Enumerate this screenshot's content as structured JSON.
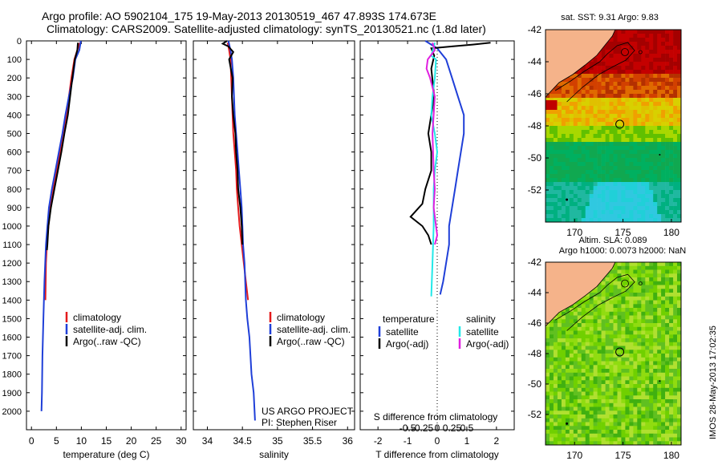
{
  "header": {
    "title_line1": "Argo profile: AO 5902104_175 19-May-2013 20130519_467 47.893S 174.673E",
    "title_line2": "Climatology: CARS2009. Satellite-adjusted climatology: synTS_20130521.nc (1.8d later)"
  },
  "map_top": {
    "title": "sat. SST: 9.31 Argo: 9.83"
  },
  "map_bottom": {
    "title_line1": "Altim. SLA: 0.089",
    "title_line2": "Argo h1000: 0.0073 h2000: NaN"
  },
  "credit": {
    "project": "US ARGO PROJECT",
    "pi": "PI: Stephen Riser"
  },
  "footer_stamp": "IMOS 28-May-2013 17:02:35",
  "colors": {
    "climatology": "#e41a1c",
    "satellite": "#1f3fd8",
    "argo": "#000000",
    "sal_satellite": "#22e8e8",
    "sal_argo": "#e020e0",
    "land": "#f5b38a"
  },
  "chart_data": [
    {
      "type": "line",
      "id": "temperature",
      "xlabel": "temperature (deg C)",
      "ylabel": "",
      "xlim": [
        -1,
        31
      ],
      "ylim": [
        2100,
        0
      ],
      "xticks": [
        0,
        5,
        10,
        15,
        20,
        25,
        30
      ],
      "yticks": [
        0,
        100,
        200,
        300,
        400,
        500,
        600,
        700,
        800,
        900,
        1000,
        1100,
        1200,
        1300,
        1400,
        1500,
        1600,
        1700,
        1800,
        1900,
        2000
      ],
      "legend": [
        "climatology",
        "satellite-adj. clim.",
        "Argo(..raw -QC)"
      ],
      "legend_position": "lower-center",
      "series": [
        {
          "name": "climatology",
          "color": "#e41a1c",
          "x": [
            9.7,
            9.2,
            8.6,
            8.0,
            7.0,
            6.3,
            5.7,
            5.1,
            4.4,
            3.8,
            3.4,
            3.1,
            2.9,
            2.8
          ],
          "y": [
            10,
            50,
            100,
            200,
            400,
            500,
            600,
            700,
            800,
            900,
            1000,
            1100,
            1200,
            1400
          ]
        },
        {
          "name": "satellite-adj. clim.",
          "color": "#1f3fd8",
          "x": [
            9.9,
            9.6,
            8.8,
            8.3,
            7.5,
            6.8,
            6.2,
            5.5,
            4.8,
            4.1,
            3.5,
            3.2,
            2.9,
            2.6,
            2.4,
            2.3,
            2.2,
            2.1,
            2.0
          ],
          "y": [
            0,
            50,
            100,
            200,
            300,
            400,
            500,
            600,
            700,
            800,
            900,
            1000,
            1100,
            1300,
            1500,
            1600,
            1700,
            1900,
            2000
          ]
        },
        {
          "name": "Argo(..raw -QC)",
          "color": "#000000",
          "x": [
            9.3,
            9.2,
            8.7,
            8.2,
            7.3,
            6.6,
            6.0,
            5.3,
            4.6,
            3.9,
            3.4,
            3.2,
            3.1
          ],
          "y": [
            10,
            50,
            100,
            200,
            400,
            500,
            600,
            700,
            800,
            900,
            1000,
            1100,
            1130
          ]
        }
      ]
    },
    {
      "type": "line",
      "id": "salinity",
      "xlabel": "salinity",
      "xlim": [
        33.8,
        36.1
      ],
      "ylim": [
        2100,
        0
      ],
      "xticks": [
        34,
        34.5,
        35,
        35.5,
        36
      ],
      "legend": [
        "climatology",
        "satellite-adj. clim.",
        "Argo(..raw -QC)"
      ],
      "legend_position": "center-right",
      "series": [
        {
          "name": "climatology",
          "color": "#e41a1c",
          "x": [
            34.29,
            34.31,
            34.33,
            34.34,
            34.36,
            34.37,
            34.39,
            34.41,
            34.42,
            34.44,
            34.46,
            34.49,
            34.52,
            34.55,
            34.58
          ],
          "y": [
            10,
            50,
            100,
            200,
            400,
            500,
            600,
            700,
            800,
            900,
            1000,
            1100,
            1200,
            1300,
            1400
          ]
        },
        {
          "name": "satellite-adj. clim.",
          "color": "#1f3fd8",
          "x": [
            34.3,
            34.33,
            34.35,
            34.37,
            34.38,
            34.39,
            34.41,
            34.43,
            34.45,
            34.47,
            34.49,
            34.5,
            34.51,
            34.53,
            34.55,
            34.57,
            34.6,
            34.63,
            34.66,
            34.68
          ],
          "y": [
            0,
            50,
            100,
            200,
            300,
            400,
            500,
            600,
            700,
            800,
            900,
            1000,
            1100,
            1200,
            1400,
            1500,
            1600,
            1800,
            1900,
            2050
          ]
        },
        {
          "name": "Argo(..raw -QC)",
          "color": "#000000",
          "x": [
            34.28,
            34.22,
            34.3,
            34.37,
            34.31,
            34.36,
            34.35,
            34.37,
            34.4,
            34.41,
            34.43,
            34.44,
            34.47,
            34.49,
            34.5
          ],
          "y": [
            0,
            15,
            30,
            60,
            100,
            200,
            300,
            400,
            500,
            600,
            700,
            800,
            900,
            1000,
            1100
          ]
        }
      ]
    },
    {
      "type": "line",
      "id": "difference",
      "xlabel": "T difference from climatology",
      "xlabel_top": "S difference from climatology",
      "xlim": [
        -2.6,
        2.6
      ],
      "ylim": [
        2100,
        0
      ],
      "xticks": [
        -2,
        -1,
        0,
        1,
        2
      ],
      "xticks_top": [
        "-0.5",
        "-0.25",
        "0",
        "0.25",
        "0.5"
      ],
      "legend_temperature": {
        "title": "temperature",
        "items": [
          "satellite",
          "Argo(-adj)"
        ]
      },
      "legend_salinity": {
        "title": "salinity",
        "items": [
          "satellite",
          "Argo(-adj)"
        ]
      },
      "series": [
        {
          "name": "temperature satellite",
          "color": "#1f3fd8",
          "x": [
            -0.4,
            -0.2,
            0.0,
            0.1,
            0.3,
            0.5,
            0.7,
            0.9,
            0.9,
            0.8,
            0.7,
            0.6,
            0.5,
            0.4,
            0.4,
            0.3,
            0.2,
            0.1
          ],
          "y": [
            0,
            20,
            40,
            60,
            100,
            200,
            300,
            400,
            500,
            600,
            700,
            800,
            900,
            1000,
            1100,
            1200,
            1300,
            1370
          ]
        },
        {
          "name": "temperature Argo(-adj)",
          "color": "#000000",
          "x": [
            1.8,
            1.2,
            0.5,
            -0.2,
            -0.1,
            -0.2,
            -0.1,
            -0.2,
            -0.3,
            -0.2,
            -0.2,
            -0.4,
            -0.5,
            -0.9,
            -0.5,
            -0.3,
            -0.2
          ],
          "y": [
            10,
            20,
            30,
            40,
            80,
            150,
            300,
            400,
            500,
            600,
            700,
            800,
            880,
            950,
            1000,
            1050,
            1100
          ]
        },
        {
          "name": "salinity satellite",
          "color": "#22e8e8",
          "x": [
            -0.02,
            -0.05,
            -0.01,
            -0.02,
            -0.04,
            -0.05,
            -0.02,
            0.0,
            -0.02,
            -0.03,
            -0.03,
            -0.04,
            -0.05
          ],
          "y": [
            10,
            80,
            100,
            200,
            300,
            400,
            500,
            600,
            700,
            800,
            1000,
            1200,
            1380
          ]
        },
        {
          "name": "salinity Argo(-adj)",
          "color": "#e020e0",
          "x": [
            -0.04,
            -0.02,
            -0.08,
            -0.09,
            -0.06,
            -0.02,
            -0.04,
            -0.03,
            -0.02,
            -0.03,
            -0.01,
            0.0,
            -0.02
          ],
          "y": [
            10,
            50,
            100,
            150,
            200,
            300,
            500,
            700,
            800,
            900,
            1000,
            1050,
            1100
          ]
        }
      ]
    },
    {
      "type": "heatmap",
      "id": "sst-map",
      "title": "sat. SST: 9.31 Argo: 9.83",
      "xlim": [
        167,
        181
      ],
      "ylim": [
        -54,
        -42
      ],
      "xticks": [
        170,
        175,
        180
      ],
      "yticks": [
        -42,
        -44,
        -46,
        -48,
        -50,
        -52
      ],
      "argo_position": {
        "lon": 174.673,
        "lat": -47.893
      }
    },
    {
      "type": "heatmap",
      "id": "sla-map",
      "title": "Altim. SLA: 0.089",
      "subtitle": "Argo h1000: 0.0073 h2000: NaN",
      "xlim": [
        167,
        181
      ],
      "ylim": [
        -54,
        -42
      ],
      "xticks": [
        170,
        175,
        180
      ],
      "yticks": [
        -42,
        -44,
        -46,
        -48,
        -50,
        -52
      ],
      "argo_position": {
        "lon": 174.673,
        "lat": -47.893
      }
    }
  ]
}
